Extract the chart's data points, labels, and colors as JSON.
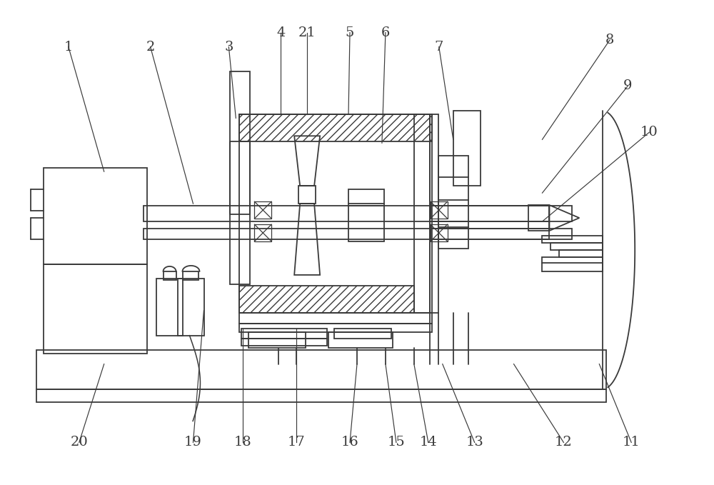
{
  "bg_color": "#ffffff",
  "line_color": "#3a3a3a",
  "figsize": [
    10.0,
    6.79
  ],
  "dpi": 100,
  "label_fontsize": 14,
  "lw_main": 1.3,
  "leaders": {
    "1": [
      95,
      65,
      145,
      240
    ],
    "2": [
      210,
      65,
      270,
      285
    ],
    "3": [
      320,
      65,
      330,
      165
    ],
    "4": [
      393,
      45,
      393,
      160
    ],
    "21": [
      430,
      45,
      430,
      160
    ],
    "5": [
      490,
      45,
      488,
      160
    ],
    "6": [
      540,
      45,
      535,
      200
    ],
    "7": [
      615,
      65,
      635,
      195
    ],
    "8": [
      855,
      55,
      760,
      195
    ],
    "9": [
      880,
      120,
      760,
      270
    ],
    "10": [
      910,
      185,
      760,
      310
    ],
    "11": [
      885,
      620,
      840,
      510
    ],
    "12": [
      790,
      620,
      720,
      510
    ],
    "13": [
      665,
      620,
      620,
      510
    ],
    "14": [
      600,
      620,
      580,
      510
    ],
    "15": [
      555,
      620,
      540,
      510
    ],
    "16": [
      490,
      620,
      500,
      510
    ],
    "17": [
      415,
      620,
      415,
      460
    ],
    "18": [
      340,
      620,
      340,
      460
    ],
    "19": [
      270,
      620,
      285,
      435
    ],
    "20": [
      110,
      620,
      145,
      510
    ]
  }
}
